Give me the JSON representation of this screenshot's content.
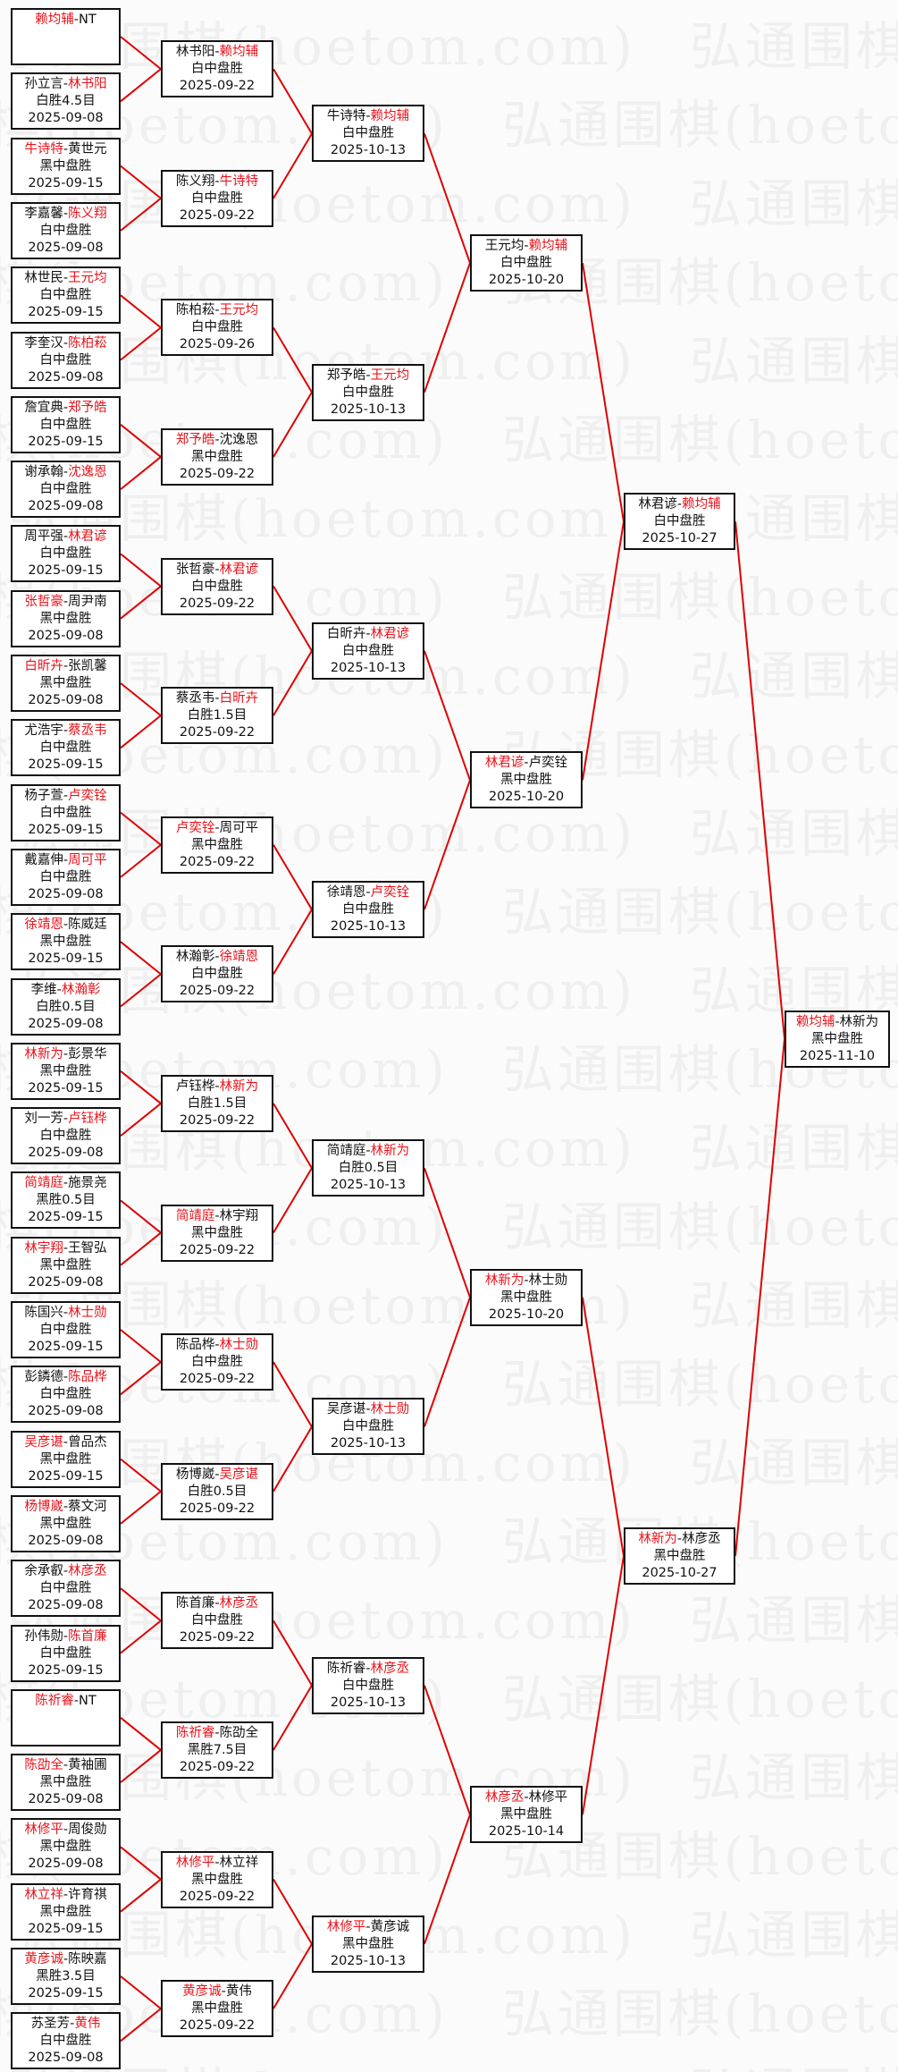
{
  "watermark": "弘通围棋(hoetom.com)",
  "separator": "-",
  "colors": {
    "winner": "#e8141c",
    "connector": "#e00000",
    "border": "#111111"
  },
  "rounds": [
    [
      {
        "players": [
          "赖均辅",
          "NT"
        ],
        "winner": 0,
        "result": "",
        "date": ""
      },
      {
        "players": [
          "孙立言",
          "林书阳"
        ],
        "winner": 1,
        "result": "白胜4.5目",
        "date": "2025-09-08"
      },
      {
        "players": [
          "牛诗特",
          "黄世元"
        ],
        "winner": 0,
        "result": "黑中盘胜",
        "date": "2025-09-15"
      },
      {
        "players": [
          "李嘉馨",
          "陈义翔"
        ],
        "winner": 1,
        "result": "白中盘胜",
        "date": "2025-09-08"
      },
      {
        "players": [
          "林世民",
          "王元均"
        ],
        "winner": 1,
        "result": "白中盘胜",
        "date": "2025-09-15"
      },
      {
        "players": [
          "李奎汉",
          "陈柏菘"
        ],
        "winner": 1,
        "result": "白中盘胜",
        "date": "2025-09-08"
      },
      {
        "players": [
          "詹宜典",
          "郑予皓"
        ],
        "winner": 1,
        "result": "白中盘胜",
        "date": "2025-09-15"
      },
      {
        "players": [
          "谢承翰",
          "沈逸恩"
        ],
        "winner": 1,
        "result": "白中盘胜",
        "date": "2025-09-08"
      },
      {
        "players": [
          "周平强",
          "林君谚"
        ],
        "winner": 1,
        "result": "白中盘胜",
        "date": "2025-09-15"
      },
      {
        "players": [
          "张哲豪",
          "周尹南"
        ],
        "winner": 0,
        "result": "黑中盘胜",
        "date": "2025-09-08"
      },
      {
        "players": [
          "白昕卉",
          "张凯馨"
        ],
        "winner": 0,
        "result": "黑中盘胜",
        "date": "2025-09-08"
      },
      {
        "players": [
          "尤浩宇",
          "蔡丞韦"
        ],
        "winner": 1,
        "result": "白中盘胜",
        "date": "2025-09-15"
      },
      {
        "players": [
          "杨子萱",
          "卢奕铨"
        ],
        "winner": 1,
        "result": "白中盘胜",
        "date": "2025-09-15"
      },
      {
        "players": [
          "戴嘉伸",
          "周可平"
        ],
        "winner": 1,
        "result": "白中盘胜",
        "date": "2025-09-08"
      },
      {
        "players": [
          "徐靖恩",
          "陈威廷"
        ],
        "winner": 0,
        "result": "黑中盘胜",
        "date": "2025-09-15"
      },
      {
        "players": [
          "李维",
          "林瀚彰"
        ],
        "winner": 1,
        "result": "白胜0.5目",
        "date": "2025-09-08"
      },
      {
        "players": [
          "林新为",
          "彭景华"
        ],
        "winner": 0,
        "result": "黑中盘胜",
        "date": "2025-09-15"
      },
      {
        "players": [
          "刘一芳",
          "卢钰桦"
        ],
        "winner": 1,
        "result": "白中盘胜",
        "date": "2025-09-08"
      },
      {
        "players": [
          "简靖庭",
          "施景尧"
        ],
        "winner": 0,
        "result": "黑胜0.5目",
        "date": "2025-09-15"
      },
      {
        "players": [
          "林宇翔",
          "王智弘"
        ],
        "winner": 0,
        "result": "黑中盘胜",
        "date": "2025-09-08"
      },
      {
        "players": [
          "陈国兴",
          "林士勋"
        ],
        "winner": 1,
        "result": "白中盘胜",
        "date": "2025-09-15"
      },
      {
        "players": [
          "彭鏻德",
          "陈品桦"
        ],
        "winner": 1,
        "result": "白中盘胜",
        "date": "2025-09-08"
      },
      {
        "players": [
          "吴彦谌",
          "曾品杰"
        ],
        "winner": 0,
        "result": "黑中盘胜",
        "date": "2025-09-15"
      },
      {
        "players": [
          "杨博崴",
          "蔡文河"
        ],
        "winner": 0,
        "result": "黑中盘胜",
        "date": "2025-09-08"
      },
      {
        "players": [
          "余承叡",
          "林彦丞"
        ],
        "winner": 1,
        "result": "白中盘胜",
        "date": "2025-09-08"
      },
      {
        "players": [
          "孙伟勋",
          "陈首廉"
        ],
        "winner": 1,
        "result": "白中盘胜",
        "date": "2025-09-15"
      },
      {
        "players": [
          "陈祈睿",
          "NT"
        ],
        "winner": 0,
        "result": "",
        "date": ""
      },
      {
        "players": [
          "陈劭全",
          "黄袖圃"
        ],
        "winner": 0,
        "result": "黑中盘胜",
        "date": "2025-09-08"
      },
      {
        "players": [
          "林修平",
          "周俊勋"
        ],
        "winner": 0,
        "result": "黑中盘胜",
        "date": "2025-09-08"
      },
      {
        "players": [
          "林立祥",
          "许育祺"
        ],
        "winner": 0,
        "result": "黑中盘胜",
        "date": "2025-09-15"
      },
      {
        "players": [
          "黄彦诚",
          "陈映嘉"
        ],
        "winner": 0,
        "result": "黑胜3.5目",
        "date": "2025-09-15"
      },
      {
        "players": [
          "苏圣芳",
          "黄伟"
        ],
        "winner": 1,
        "result": "白中盘胜",
        "date": "2025-09-08"
      }
    ],
    [
      {
        "players": [
          "林书阳",
          "赖均辅"
        ],
        "winner": 1,
        "result": "白中盘胜",
        "date": "2025-09-22"
      },
      {
        "players": [
          "陈义翔",
          "牛诗特"
        ],
        "winner": 1,
        "result": "白中盘胜",
        "date": "2025-09-22"
      },
      {
        "players": [
          "陈柏菘",
          "王元均"
        ],
        "winner": 1,
        "result": "白中盘胜",
        "date": "2025-09-26"
      },
      {
        "players": [
          "郑予皓",
          "沈逸恩"
        ],
        "winner": 0,
        "result": "黑中盘胜",
        "date": "2025-09-22"
      },
      {
        "players": [
          "张哲豪",
          "林君谚"
        ],
        "winner": 1,
        "result": "白中盘胜",
        "date": "2025-09-22"
      },
      {
        "players": [
          "蔡丞韦",
          "白昕卉"
        ],
        "winner": 1,
        "result": "白胜1.5目",
        "date": "2025-09-22"
      },
      {
        "players": [
          "卢奕铨",
          "周可平"
        ],
        "winner": 0,
        "result": "黑中盘胜",
        "date": "2025-09-22"
      },
      {
        "players": [
          "林瀚彰",
          "徐靖恩"
        ],
        "winner": 1,
        "result": "白中盘胜",
        "date": "2025-09-22"
      },
      {
        "players": [
          "卢钰桦",
          "林新为"
        ],
        "winner": 1,
        "result": "白胜1.5目",
        "date": "2025-09-22"
      },
      {
        "players": [
          "简靖庭",
          "林宇翔"
        ],
        "winner": 0,
        "result": "黑中盘胜",
        "date": "2025-09-22"
      },
      {
        "players": [
          "陈品桦",
          "林士勋"
        ],
        "winner": 1,
        "result": "白中盘胜",
        "date": "2025-09-22"
      },
      {
        "players": [
          "杨博崴",
          "吴彦谌"
        ],
        "winner": 1,
        "result": "白胜0.5目",
        "date": "2025-09-22"
      },
      {
        "players": [
          "陈首廉",
          "林彦丞"
        ],
        "winner": 1,
        "result": "白中盘胜",
        "date": "2025-09-22"
      },
      {
        "players": [
          "陈祈睿",
          "陈劭全"
        ],
        "winner": 0,
        "result": "黑胜7.5目",
        "date": "2025-09-22"
      },
      {
        "players": [
          "林修平",
          "林立祥"
        ],
        "winner": 0,
        "result": "黑中盘胜",
        "date": "2025-09-22"
      },
      {
        "players": [
          "黄彦诚",
          "黄伟"
        ],
        "winner": 0,
        "result": "黑中盘胜",
        "date": "2025-09-22"
      }
    ],
    [
      {
        "players": [
          "牛诗特",
          "赖均辅"
        ],
        "winner": 1,
        "result": "白中盘胜",
        "date": "2025-10-13"
      },
      {
        "players": [
          "郑予皓",
          "王元均"
        ],
        "winner": 1,
        "result": "白中盘胜",
        "date": "2025-10-13"
      },
      {
        "players": [
          "白昕卉",
          "林君谚"
        ],
        "winner": 1,
        "result": "白中盘胜",
        "date": "2025-10-13"
      },
      {
        "players": [
          "徐靖恩",
          "卢奕铨"
        ],
        "winner": 1,
        "result": "白中盘胜",
        "date": "2025-10-13"
      },
      {
        "players": [
          "简靖庭",
          "林新为"
        ],
        "winner": 1,
        "result": "白胜0.5目",
        "date": "2025-10-13"
      },
      {
        "players": [
          "吴彦谌",
          "林士勋"
        ],
        "winner": 1,
        "result": "白中盘胜",
        "date": "2025-10-13"
      },
      {
        "players": [
          "陈祈睿",
          "林彦丞"
        ],
        "winner": 1,
        "result": "白中盘胜",
        "date": "2025-10-13"
      },
      {
        "players": [
          "林修平",
          "黄彦诚"
        ],
        "winner": 0,
        "result": "黑中盘胜",
        "date": "2025-10-13"
      }
    ],
    [
      {
        "players": [
          "王元均",
          "赖均辅"
        ],
        "winner": 1,
        "result": "白中盘胜",
        "date": "2025-10-20"
      },
      {
        "players": [
          "林君谚",
          "卢奕铨"
        ],
        "winner": 0,
        "result": "黑中盘胜",
        "date": "2025-10-20"
      },
      {
        "players": [
          "林新为",
          "林士勋"
        ],
        "winner": 0,
        "result": "黑中盘胜",
        "date": "2025-10-20"
      },
      {
        "players": [
          "林彦丞",
          "林修平"
        ],
        "winner": 0,
        "result": "黑中盘胜",
        "date": "2025-10-14"
      }
    ],
    [
      {
        "players": [
          "林君谚",
          "赖均辅"
        ],
        "winner": 1,
        "result": "白中盘胜",
        "date": "2025-10-27"
      },
      {
        "players": [
          "林新为",
          "林彦丞"
        ],
        "winner": 0,
        "result": "黑中盘胜",
        "date": "2025-10-27"
      }
    ],
    [
      {
        "players": [
          "赖均辅",
          "林新为"
        ],
        "winner": 0,
        "result": "黑中盘胜",
        "date": "2025-11-10"
      }
    ]
  ]
}
